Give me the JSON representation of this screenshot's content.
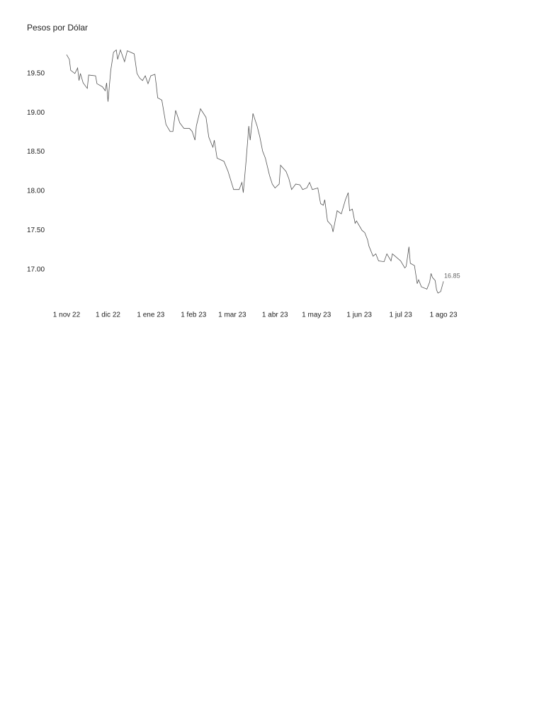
{
  "chart_data": {
    "type": "line",
    "title": "Pesos por Dólar",
    "x": [
      "2022-11-01",
      "2022-11-03",
      "2022-11-04",
      "2022-11-07",
      "2022-11-09",
      "2022-11-10",
      "2022-11-11",
      "2022-11-13",
      "2022-11-16",
      "2022-11-17",
      "2022-11-22",
      "2022-11-23",
      "2022-11-27",
      "2022-11-29",
      "2022-11-30",
      "2022-12-01",
      "2022-12-03",
      "2022-12-05",
      "2022-12-07",
      "2022-12-08",
      "2022-12-10",
      "2022-12-13",
      "2022-12-15",
      "2022-12-20",
      "2022-12-22",
      "2022-12-24",
      "2022-12-26",
      "2022-12-28",
      "2022-12-30",
      "2023-01-01",
      "2023-01-04",
      "2023-01-05",
      "2023-01-06",
      "2023-01-09",
      "2023-01-12",
      "2023-01-15",
      "2023-01-17",
      "2023-01-19",
      "2023-01-22",
      "2023-01-25",
      "2023-01-29",
      "2023-01-31",
      "2023-02-02",
      "2023-02-03",
      "2023-02-06",
      "2023-02-10",
      "2023-02-12",
      "2023-02-14",
      "2023-02-15",
      "2023-02-16",
      "2023-02-18",
      "2023-02-23",
      "2023-02-26",
      "2023-03-02",
      "2023-03-06",
      "2023-03-08",
      "2023-03-09",
      "2023-03-11",
      "2023-03-13",
      "2023-03-14",
      "2023-03-16",
      "2023-03-19",
      "2023-03-21",
      "2023-03-23",
      "2023-03-25",
      "2023-03-28",
      "2023-03-30",
      "2023-04-01",
      "2023-04-04",
      "2023-04-05",
      "2023-04-09",
      "2023-04-11",
      "2023-04-13",
      "2023-04-16",
      "2023-04-19",
      "2023-04-21",
      "2023-04-24",
      "2023-04-26",
      "2023-04-28",
      "2023-05-02",
      "2023-05-04",
      "2023-05-06",
      "2023-05-07",
      "2023-05-09",
      "2023-05-12",
      "2023-05-13",
      "2023-05-16",
      "2023-05-19",
      "2023-05-22",
      "2023-05-24",
      "2023-05-25",
      "2023-05-27",
      "2023-05-29",
      "2023-05-30",
      "2023-06-03",
      "2023-06-05",
      "2023-06-07",
      "2023-06-08",
      "2023-06-11",
      "2023-06-13",
      "2023-06-15",
      "2023-06-19",
      "2023-06-21",
      "2023-06-24",
      "2023-06-25",
      "2023-06-29",
      "2023-07-01",
      "2023-07-04",
      "2023-07-05",
      "2023-07-07",
      "2023-07-08",
      "2023-07-11",
      "2023-07-13",
      "2023-07-14",
      "2023-07-16",
      "2023-07-20",
      "2023-07-22",
      "2023-07-23",
      "2023-07-24",
      "2023-07-26",
      "2023-07-27",
      "2023-07-28",
      "2023-07-30",
      "2023-08-01"
    ],
    "series": [
      {
        "color": "#555555",
        "values": [
          19.74,
          19.68,
          19.54,
          19.5,
          19.57,
          19.41,
          19.5,
          19.38,
          19.31,
          19.48,
          19.47,
          19.37,
          19.33,
          19.28,
          19.38,
          19.14,
          19.54,
          19.77,
          19.8,
          19.68,
          19.8,
          19.65,
          19.79,
          19.75,
          19.5,
          19.44,
          19.41,
          19.47,
          19.37,
          19.47,
          19.49,
          19.35,
          19.19,
          19.16,
          18.85,
          18.76,
          18.76,
          19.03,
          18.87,
          18.8,
          18.8,
          18.76,
          18.65,
          18.83,
          19.05,
          18.94,
          18.69,
          18.6,
          18.56,
          18.65,
          18.42,
          18.38,
          18.25,
          18.02,
          18.02,
          18.11,
          17.98,
          18.38,
          18.83,
          18.65,
          18.99,
          18.83,
          18.69,
          18.51,
          18.42,
          18.2,
          18.09,
          18.04,
          18.09,
          18.33,
          18.25,
          18.16,
          18.02,
          18.09,
          18.08,
          18.02,
          18.04,
          18.11,
          18.02,
          18.04,
          17.84,
          17.82,
          17.89,
          17.62,
          17.56,
          17.48,
          17.75,
          17.71,
          17.89,
          17.98,
          17.75,
          17.77,
          17.59,
          17.62,
          17.5,
          17.47,
          17.38,
          17.3,
          17.17,
          17.2,
          17.11,
          17.1,
          17.2,
          17.11,
          17.2,
          17.14,
          17.11,
          17.02,
          17.04,
          17.29,
          17.08,
          17.05,
          16.82,
          16.87,
          16.78,
          16.75,
          16.84,
          16.95,
          16.9,
          16.86,
          16.74,
          16.7,
          16.72,
          16.85
        ]
      }
    ],
    "xlim": [
      "2022-10-20",
      "2023-08-12"
    ],
    "xticks": [
      {
        "value": "2022-11-01",
        "label": "1 nov 22"
      },
      {
        "value": "2022-12-01",
        "label": "1 dic 22"
      },
      {
        "value": "2023-01-01",
        "label": "1 ene 23"
      },
      {
        "value": "2023-02-01",
        "label": "1 feb 23"
      },
      {
        "value": "2023-03-01",
        "label": "1 mar 23"
      },
      {
        "value": "2023-04-01",
        "label": "1 abr 23"
      },
      {
        "value": "2023-05-01",
        "label": "1 may 23"
      },
      {
        "value": "2023-06-01",
        "label": "1 jun 23"
      },
      {
        "value": "2023-07-01",
        "label": "1 jul 23"
      },
      {
        "value": "2023-08-01",
        "label": "1 ago 23"
      }
    ],
    "ylim": [
      16.6,
      19.85
    ],
    "yticks": [
      {
        "value": 17,
        "label": "17.00"
      },
      {
        "value": 17.5,
        "label": "17.50"
      },
      {
        "value": 18,
        "label": "18.00"
      },
      {
        "value": 18.5,
        "label": "18.50"
      },
      {
        "value": 19,
        "label": "19.00"
      },
      {
        "value": 19.5,
        "label": "19.50"
      }
    ],
    "grid": false
  }
}
